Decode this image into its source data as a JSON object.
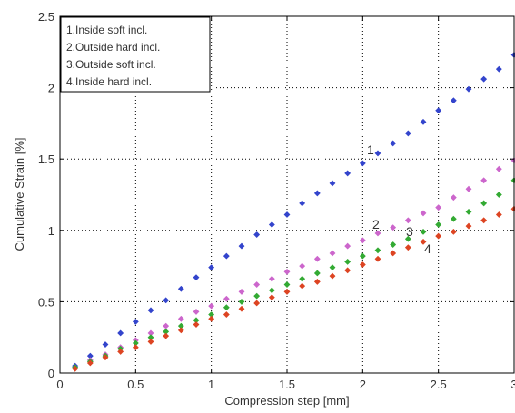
{
  "chart_data": {
    "type": "scatter",
    "title": "",
    "xlabel": "Compression step [mm]",
    "ylabel": "Cumulative Strain [%]",
    "xlim": [
      0,
      3
    ],
    "ylim": [
      0,
      2.5
    ],
    "xticks": [
      "0",
      "0.5",
      "1",
      "1.5",
      "2",
      "2.5",
      "3"
    ],
    "yticks": [
      "0",
      "0.5",
      "1",
      "1.5",
      "2",
      "2.5"
    ],
    "grid": true,
    "legend_position": "top-left",
    "legend": [
      "1.Inside soft incl.",
      "2.Outside hard incl.",
      "3.Outside soft incl.",
      "4.Inside hard incl."
    ],
    "x": [
      0.1,
      0.2,
      0.3,
      0.4,
      0.5,
      0.6,
      0.7,
      0.8,
      0.9,
      1.0,
      1.1,
      1.2,
      1.3,
      1.4,
      1.5,
      1.6,
      1.7,
      1.8,
      1.9,
      2.0,
      2.1,
      2.2,
      2.3,
      2.4,
      2.5,
      2.6,
      2.7,
      2.8,
      2.9,
      3.0
    ],
    "series": [
      {
        "name": "1.Inside soft incl.",
        "color": "#3344cc",
        "annotation": "1",
        "values": [
          0.05,
          0.12,
          0.2,
          0.28,
          0.36,
          0.44,
          0.51,
          0.59,
          0.67,
          0.74,
          0.82,
          0.89,
          0.97,
          1.04,
          1.11,
          1.19,
          1.26,
          1.33,
          1.4,
          1.47,
          1.54,
          1.61,
          1.68,
          1.76,
          1.84,
          1.91,
          1.99,
          2.06,
          2.13,
          2.23
        ]
      },
      {
        "name": "2.Outside hard incl.",
        "color": "#cc66cc",
        "annotation": "2",
        "values": [
          0.04,
          0.09,
          0.13,
          0.18,
          0.23,
          0.28,
          0.33,
          0.38,
          0.43,
          0.47,
          0.52,
          0.57,
          0.62,
          0.66,
          0.71,
          0.75,
          0.8,
          0.84,
          0.89,
          0.93,
          0.98,
          1.02,
          1.07,
          1.12,
          1.16,
          1.23,
          1.29,
          1.35,
          1.43,
          1.49
        ]
      },
      {
        "name": "3.Outside soft incl.",
        "color": "#33aa33",
        "annotation": "3",
        "values": [
          0.04,
          0.08,
          0.12,
          0.17,
          0.21,
          0.25,
          0.29,
          0.33,
          0.37,
          0.41,
          0.46,
          0.5,
          0.54,
          0.58,
          0.62,
          0.66,
          0.7,
          0.74,
          0.78,
          0.82,
          0.86,
          0.9,
          0.94,
          0.99,
          1.04,
          1.08,
          1.13,
          1.19,
          1.25,
          1.35
        ]
      },
      {
        "name": "4.Inside hard incl.",
        "color": "#dd4422",
        "annotation": "4",
        "values": [
          0.03,
          0.07,
          0.11,
          0.15,
          0.18,
          0.22,
          0.26,
          0.3,
          0.34,
          0.38,
          0.41,
          0.45,
          0.49,
          0.53,
          0.57,
          0.61,
          0.64,
          0.68,
          0.72,
          0.76,
          0.8,
          0.84,
          0.88,
          0.92,
          0.96,
          0.99,
          1.03,
          1.07,
          1.11,
          1.15
        ]
      }
    ]
  }
}
